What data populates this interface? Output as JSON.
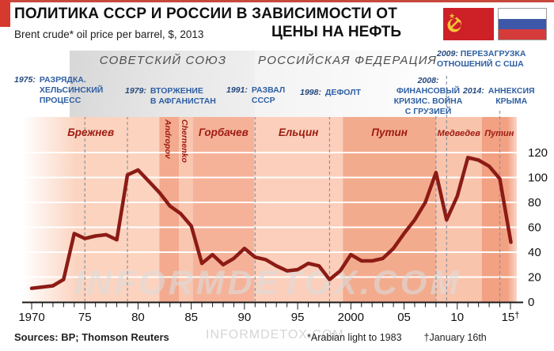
{
  "header": {
    "title_line1": "ПОЛИТИКА СССР И РОССИИ В ЗАВИСИМОСТИ ОТ",
    "title_line2": "ЦЕНЫ НА НЕФТЬ",
    "subtitle": "Brent crude* oil price per barrel, $, 2013"
  },
  "flags": {
    "ussr": "ussr-flag",
    "russia": "russia-flag"
  },
  "era_headers": {
    "soviet": "СОВЕТСКИЙ СОЮЗ",
    "russian": "РОССИЙСКАЯ ФЕДЕРАЦИЯ"
  },
  "annotations": [
    {
      "year": "1975:",
      "lines": [
        "РАЗРЯДКА.",
        "ХЕЛЬСИНСКИЙ",
        "ПРОЦЕСС"
      ]
    },
    {
      "year": "1979:",
      "lines": [
        "ВТОРЖЕНИЕ",
        "В АФГАНИСТАН"
      ]
    },
    {
      "year": "1991:",
      "lines": [
        "РАЗВАЛ",
        "СССР"
      ]
    },
    {
      "year": "1998:",
      "lines": [
        "ДЕФОЛТ"
      ]
    },
    {
      "year": "2008:",
      "lines": [
        "ФИНАНСОВЫЙ",
        "КРИЗИС. ВОЙНА",
        "С ГРУЗИЕЙ"
      ]
    },
    {
      "year": "2009:",
      "lines": [
        "ПЕРЕЗАГРУЗКА",
        "ОТНОШЕНИЙ С США"
      ]
    },
    {
      "year": "2014:",
      "lines": [
        "АННЕКСИЯ",
        "КРЫМА"
      ]
    }
  ],
  "watermark": "INFORMDETOX.COM",
  "footer": {
    "sources": "Sources: BP; Thomson Reuters",
    "footnote1": "*Arabian light to 1983",
    "footnote2": "†January 16th"
  },
  "chart_data": {
    "type": "line",
    "title": "ПОЛИТИКА СССР И РОССИИ В ЗАВИСИМОСТИ ОТ ЦЕНЫ НА НЕФТЬ",
    "subtitle": "Brent crude* oil price per barrel, $, 2013",
    "ylabel": "Brent crude oil price per barrel, $ (2013)",
    "ylim": [
      0,
      130
    ],
    "y_ticks": [
      0,
      20,
      40,
      60,
      80,
      100,
      120
    ],
    "x_tick_years": [
      1970,
      1975,
      1980,
      1985,
      1990,
      1995,
      2000,
      2005,
      2010,
      2015
    ],
    "x_tick_labels": [
      "1970",
      "75",
      "80",
      "85",
      "90",
      "95",
      "2000",
      "05",
      "10",
      "15†"
    ],
    "x_range": [
      1969.1,
      2016.2
    ],
    "grid": "white horizontal lines; dashed vertical lines at event years",
    "legend_position": "none",
    "line_color": "#8c1b15",
    "event_years": [
      1975,
      1979,
      1991,
      1998,
      2008,
      2009,
      2014
    ],
    "bands": [
      {
        "label": "Брежнев",
        "from": 1969.1,
        "to": 1982.0,
        "color": "#fbd3bf",
        "orient": "h",
        "size": "big"
      },
      {
        "label": "Andropov",
        "from": 1982.0,
        "to": 1983.85,
        "color": "#f3aa8f",
        "orient": "v",
        "size": "big"
      },
      {
        "label": "Chernenko",
        "from": 1983.85,
        "to": 1985.15,
        "color": "#f9c6af",
        "orient": "v",
        "size": "big"
      },
      {
        "label": "Горбачев",
        "from": 1985.15,
        "to": 1990.9,
        "color": "#f5b298",
        "orient": "h",
        "size": "big"
      },
      {
        "label": "Ельцин",
        "from": 1990.9,
        "to": 1999.25,
        "color": "#fbcfbb",
        "orient": "h",
        "size": "big"
      },
      {
        "label": "Путин",
        "from": 1999.25,
        "to": 2008.0,
        "color": "#f3ab8e",
        "orient": "h",
        "size": "big"
      },
      {
        "label": "Медведев",
        "from": 2008.0,
        "to": 2012.3,
        "color": "#f9c4ac",
        "orient": "h",
        "size": "small"
      },
      {
        "label": "Путин",
        "from": 2012.3,
        "to": 2015.6,
        "color": "#f2a183",
        "orient": "h",
        "size": "small"
      }
    ],
    "series": [
      {
        "name": "Brent crude oil price, $, 2013",
        "points": [
          [
            1970,
            11
          ],
          [
            1971,
            12
          ],
          [
            1972,
            13
          ],
          [
            1973,
            18
          ],
          [
            1974,
            55
          ],
          [
            1975,
            51
          ],
          [
            1976,
            53
          ],
          [
            1977,
            54
          ],
          [
            1978,
            50
          ],
          [
            1979,
            102
          ],
          [
            1980,
            106
          ],
          [
            1981,
            97
          ],
          [
            1982,
            88
          ],
          [
            1983,
            77
          ],
          [
            1984,
            71
          ],
          [
            1985,
            61
          ],
          [
            1986,
            31
          ],
          [
            1987,
            38
          ],
          [
            1988,
            30
          ],
          [
            1989,
            35
          ],
          [
            1990,
            43
          ],
          [
            1991,
            36
          ],
          [
            1992,
            34
          ],
          [
            1993,
            29
          ],
          [
            1994,
            25
          ],
          [
            1995,
            26
          ],
          [
            1996,
            31
          ],
          [
            1997,
            29
          ],
          [
            1998,
            18
          ],
          [
            1999,
            25
          ],
          [
            2000,
            38
          ],
          [
            2001,
            33
          ],
          [
            2002,
            33
          ],
          [
            2003,
            35
          ],
          [
            2004,
            43
          ],
          [
            2005,
            55
          ],
          [
            2006,
            66
          ],
          [
            2007,
            80
          ],
          [
            2008,
            104
          ],
          [
            2009,
            66
          ],
          [
            2010,
            85
          ],
          [
            2011,
            116
          ],
          [
            2012,
            114
          ],
          [
            2013,
            109
          ],
          [
            2014,
            99
          ],
          [
            2015.04,
            48
          ]
        ]
      }
    ]
  }
}
